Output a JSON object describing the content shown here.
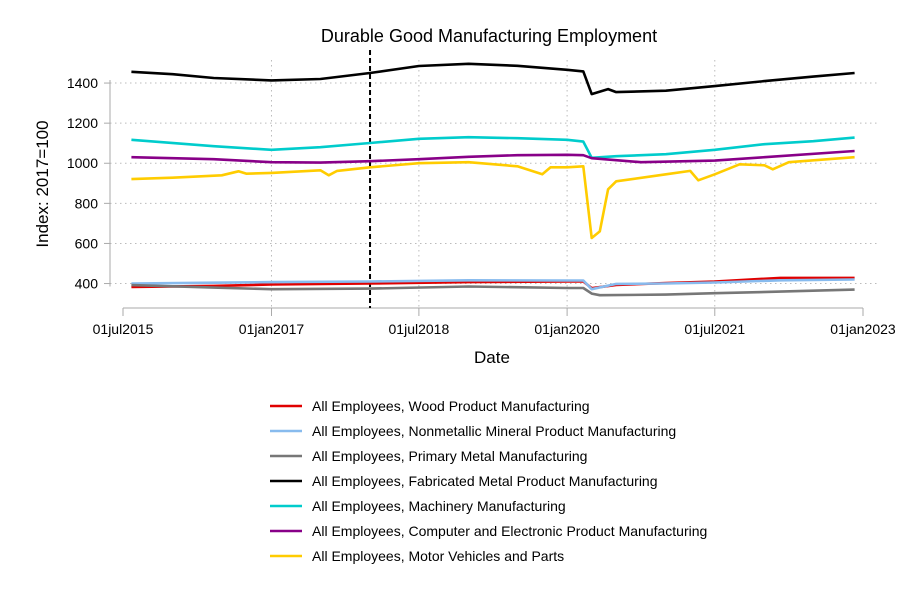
{
  "chart_data": {
    "type": "line",
    "title": "Durable Good Manufacturing Employment",
    "xlabel": "Date",
    "ylabel": "Index: 2017=100",
    "xlim": [
      "2015-07-01",
      "2023-01-01"
    ],
    "ylim": [
      278,
      1515
    ],
    "x_ticks": [
      {
        "date": "2015-07-01",
        "label": "01jul2015"
      },
      {
        "date": "2017-01-01",
        "label": "01jan2017"
      },
      {
        "date": "2018-07-01",
        "label": "01jul2018"
      },
      {
        "date": "2020-01-01",
        "label": "01jan2020"
      },
      {
        "date": "2021-07-01",
        "label": "01jul2021"
      },
      {
        "date": "2023-01-01",
        "label": "01jan2023"
      }
    ],
    "y_ticks": [
      400,
      600,
      800,
      1000,
      1200,
      1400
    ],
    "grid": "dotted",
    "legend_position": "bottom",
    "reference_line": {
      "date": "2018-01-01",
      "style": "dashed",
      "color": "#000000"
    },
    "series": [
      {
        "name": "All Employees, Wood Product Manufacturing",
        "color": "#e00000",
        "points": [
          [
            "2015-08-01",
            383
          ],
          [
            "2016-06-01",
            388
          ],
          [
            "2017-01-01",
            395
          ],
          [
            "2018-01-01",
            400
          ],
          [
            "2019-01-01",
            407
          ],
          [
            "2020-01-01",
            410
          ],
          [
            "2020-03-01",
            410
          ],
          [
            "2020-04-01",
            377
          ],
          [
            "2020-07-01",
            393
          ],
          [
            "2021-01-01",
            402
          ],
          [
            "2021-07-01",
            410
          ],
          [
            "2022-03-01",
            428
          ],
          [
            "2022-12-01",
            428
          ]
        ]
      },
      {
        "name": "All Employees, Nonmetallic Mineral Product Manufacturing",
        "color": "#88bbee",
        "points": [
          [
            "2015-08-01",
            400
          ],
          [
            "2016-06-01",
            404
          ],
          [
            "2017-01-01",
            407
          ],
          [
            "2018-01-01",
            410
          ],
          [
            "2019-01-01",
            416
          ],
          [
            "2020-01-01",
            415
          ],
          [
            "2020-03-01",
            415
          ],
          [
            "2020-04-01",
            372
          ],
          [
            "2020-07-01",
            398
          ],
          [
            "2021-01-01",
            400
          ],
          [
            "2021-07-01",
            405
          ],
          [
            "2022-03-01",
            416
          ],
          [
            "2022-12-01",
            420
          ]
        ]
      },
      {
        "name": "All Employees, Primary Metal Manufacturing",
        "color": "#777777",
        "points": [
          [
            "2015-08-01",
            392
          ],
          [
            "2016-06-01",
            380
          ],
          [
            "2017-01-01",
            372
          ],
          [
            "2018-01-01",
            375
          ],
          [
            "2019-01-01",
            385
          ],
          [
            "2020-01-01",
            378
          ],
          [
            "2020-03-01",
            378
          ],
          [
            "2020-04-01",
            350
          ],
          [
            "2020-05-01",
            342
          ],
          [
            "2021-01-01",
            345
          ],
          [
            "2021-07-01",
            352
          ],
          [
            "2022-03-01",
            360
          ],
          [
            "2022-12-01",
            370
          ]
        ]
      },
      {
        "name": "All Employees, Fabricated Metal Product Manufacturing",
        "color": "#000000",
        "points": [
          [
            "2015-08-01",
            1456
          ],
          [
            "2016-01-01",
            1444
          ],
          [
            "2016-06-01",
            1425
          ],
          [
            "2017-01-01",
            1413
          ],
          [
            "2017-07-01",
            1420
          ],
          [
            "2018-01-01",
            1450
          ],
          [
            "2018-07-01",
            1485
          ],
          [
            "2019-01-01",
            1496
          ],
          [
            "2019-07-01",
            1486
          ],
          [
            "2020-01-01",
            1466
          ],
          [
            "2020-03-01",
            1458
          ],
          [
            "2020-04-01",
            1345
          ],
          [
            "2020-06-01",
            1370
          ],
          [
            "2020-07-01",
            1355
          ],
          [
            "2021-01-01",
            1362
          ],
          [
            "2021-07-01",
            1385
          ],
          [
            "2022-01-01",
            1410
          ],
          [
            "2022-07-01",
            1432
          ],
          [
            "2022-12-01",
            1450
          ]
        ]
      },
      {
        "name": "All Employees, Machinery Manufacturing",
        "color": "#00cccc",
        "points": [
          [
            "2015-08-01",
            1117
          ],
          [
            "2016-06-01",
            1085
          ],
          [
            "2017-01-01",
            1067
          ],
          [
            "2017-07-01",
            1080
          ],
          [
            "2018-01-01",
            1101
          ],
          [
            "2018-07-01",
            1122
          ],
          [
            "2019-01-01",
            1130
          ],
          [
            "2019-07-01",
            1125
          ],
          [
            "2020-01-01",
            1117
          ],
          [
            "2020-03-01",
            1108
          ],
          [
            "2020-04-01",
            1027
          ],
          [
            "2020-07-01",
            1035
          ],
          [
            "2021-01-01",
            1045
          ],
          [
            "2021-07-01",
            1067
          ],
          [
            "2022-01-01",
            1095
          ],
          [
            "2022-07-01",
            1110
          ],
          [
            "2022-12-01",
            1128
          ]
        ]
      },
      {
        "name": "All Employees, Computer and Electronic Product Manufacturing",
        "color": "#880088",
        "points": [
          [
            "2015-08-01",
            1030
          ],
          [
            "2016-06-01",
            1020
          ],
          [
            "2017-01-01",
            1005
          ],
          [
            "2017-07-01",
            1003
          ],
          [
            "2018-01-01",
            1010
          ],
          [
            "2018-07-01",
            1020
          ],
          [
            "2019-01-01",
            1032
          ],
          [
            "2019-07-01",
            1040
          ],
          [
            "2020-01-01",
            1042
          ],
          [
            "2020-03-01",
            1040
          ],
          [
            "2020-04-01",
            1025
          ],
          [
            "2020-10-01",
            1005
          ],
          [
            "2021-07-01",
            1013
          ],
          [
            "2022-01-01",
            1030
          ],
          [
            "2022-12-01",
            1061
          ]
        ]
      },
      {
        "name": "All Employees, Motor Vehicles and Parts",
        "color": "#ffcc00",
        "points": [
          [
            "2015-08-01",
            921
          ],
          [
            "2016-01-01",
            928
          ],
          [
            "2016-07-01",
            940
          ],
          [
            "2016-09-01",
            960
          ],
          [
            "2016-10-01",
            948
          ],
          [
            "2017-01-01",
            952
          ],
          [
            "2017-07-01",
            965
          ],
          [
            "2017-08-01",
            940
          ],
          [
            "2017-09-01",
            962
          ],
          [
            "2018-01-01",
            980
          ],
          [
            "2018-07-01",
            1000
          ],
          [
            "2019-01-01",
            1005
          ],
          [
            "2019-07-01",
            985
          ],
          [
            "2019-10-01",
            945
          ],
          [
            "2019-11-01",
            980
          ],
          [
            "2020-01-01",
            980
          ],
          [
            "2020-03-01",
            985
          ],
          [
            "2020-04-01",
            627
          ],
          [
            "2020-05-01",
            660
          ],
          [
            "2020-06-01",
            870
          ],
          [
            "2020-07-01",
            910
          ],
          [
            "2021-01-01",
            945
          ],
          [
            "2021-04-01",
            962
          ],
          [
            "2021-05-01",
            915
          ],
          [
            "2021-07-01",
            945
          ],
          [
            "2021-10-01",
            995
          ],
          [
            "2022-01-01",
            990
          ],
          [
            "2022-02-01",
            970
          ],
          [
            "2022-04-01",
            1005
          ],
          [
            "2022-12-01",
            1030
          ]
        ]
      }
    ]
  }
}
